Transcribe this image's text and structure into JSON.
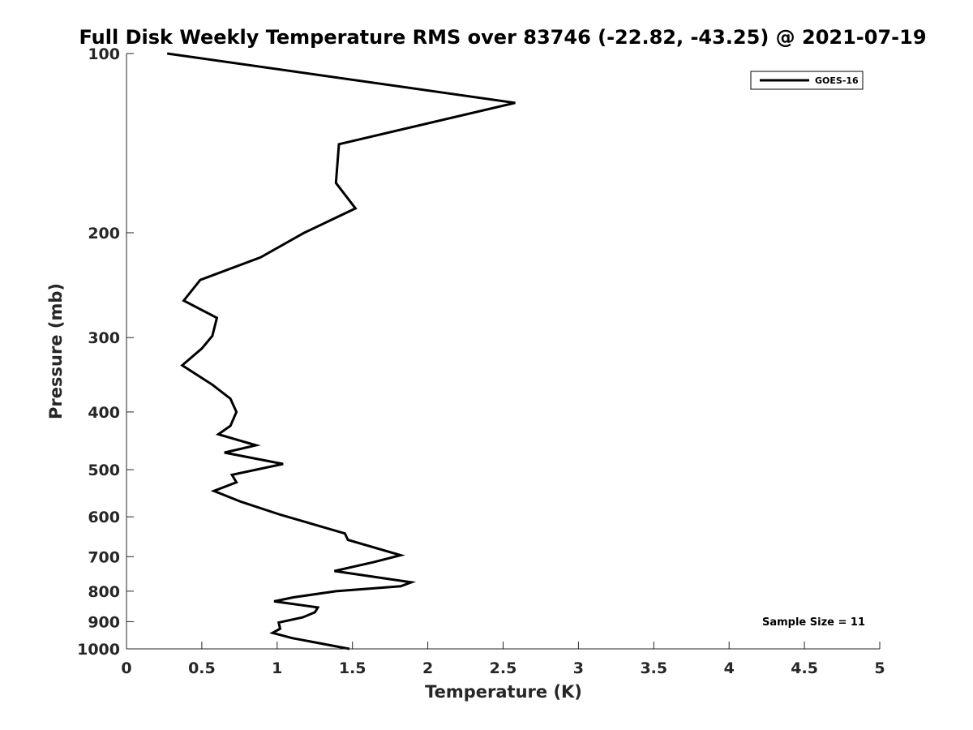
{
  "chart_data": {
    "type": "line",
    "title": "Full Disk Weekly Temperature RMS over 83746 (-22.82, -43.25) @ 2021-07-19",
    "xlabel": "Temperature (K)",
    "ylabel": "Pressure (mb)",
    "xlim": [
      0,
      5
    ],
    "ylim": [
      1000,
      100
    ],
    "yscale": "log",
    "y_reversed": true,
    "xticks": [
      0,
      0.5,
      1,
      1.5,
      2,
      2.5,
      3,
      3.5,
      4,
      4.5,
      5
    ],
    "xtick_labels": [
      "0",
      "0.5",
      "1",
      "1.5",
      "2",
      "2.5",
      "3",
      "3.5",
      "4",
      "4.5",
      "5"
    ],
    "yticks": [
      100,
      200,
      300,
      400,
      500,
      600,
      700,
      800,
      900,
      1000
    ],
    "ytick_labels": [
      "100",
      "200",
      "300",
      "400",
      "500",
      "600",
      "700",
      "800",
      "900",
      "1000"
    ],
    "grid": false,
    "legend_position": "top-right",
    "series": [
      {
        "name": "GOES-16",
        "color": "#000000",
        "x": [
          0.27,
          2.58,
          1.41,
          1.39,
          1.52,
          1.18,
          0.89,
          0.49,
          0.38,
          0.6,
          0.57,
          0.5,
          0.37,
          0.57,
          0.69,
          0.73,
          0.69,
          0.61,
          0.86,
          0.65,
          1.04,
          0.7,
          0.73,
          0.58,
          0.76,
          1.02,
          1.45,
          1.47,
          1.82,
          1.64,
          1.38,
          1.89,
          1.82,
          1.39,
          1.11,
          0.98,
          1.27,
          1.25,
          1.17,
          1.01,
          1.02,
          0.97,
          1.1,
          1.48
        ],
        "y": [
          100,
          121,
          142,
          165,
          182,
          200,
          220,
          240,
          260,
          278,
          298,
          313,
          334,
          360,
          380,
          400,
          422,
          436,
          455,
          468,
          489,
          510,
          525,
          543,
          566,
          595,
          640,
          656,
          696,
          715,
          740,
          773,
          785,
          800,
          819,
          832,
          852,
          868,
          885,
          903,
          925,
          940,
          959,
          1000
        ]
      }
    ],
    "annotations": [
      "Sample Size = 11"
    ]
  }
}
